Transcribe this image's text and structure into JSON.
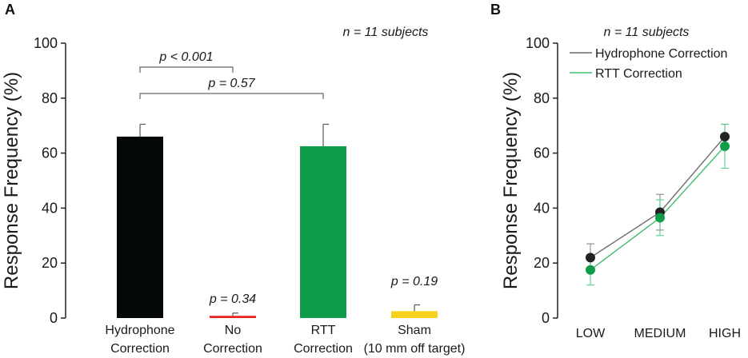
{
  "chart_data": [
    {
      "panel": "A",
      "type": "bar",
      "annotation": "n = 11 subjects",
      "ylabel": "Response Frequency (%)",
      "ylim": [
        0,
        100
      ],
      "yticks": [
        "0",
        "20",
        "40",
        "60",
        "80",
        "100"
      ],
      "categories": [
        {
          "line1": "Hydrophone",
          "line2": "Correction"
        },
        {
          "line1": "No",
          "line2": "Correction"
        },
        {
          "line1": "RTT",
          "line2": "Correction"
        },
        {
          "line1": "Sham",
          "line2": "(10 mm off target)"
        }
      ],
      "values": [
        66,
        0.8,
        62.5,
        2.5
      ],
      "errors": [
        4.5,
        1.0,
        8.0,
        2.3
      ],
      "colors": [
        "#050808",
        "#e8231d",
        "#0f9d4a",
        "#f5d21c"
      ],
      "bar_p_labels": [
        "",
        "p = 0.34",
        "",
        "p = 0.19"
      ],
      "brackets": [
        {
          "label": "p < 0.001",
          "from": 0,
          "to": 1
        },
        {
          "label": "p = 0.57",
          "from": 0,
          "to": 2
        }
      ]
    },
    {
      "panel": "B",
      "type": "line",
      "annotation": "n = 11 subjects",
      "ylabel": "Response Frequency (%)",
      "ylim": [
        0,
        100
      ],
      "yticks": [
        "0",
        "20",
        "40",
        "60",
        "80",
        "100"
      ],
      "categories": [
        "LOW",
        "MEDIUM",
        "HIGH"
      ],
      "series": [
        {
          "name": "Hydrophone Correction",
          "values": [
            22,
            38.5,
            66
          ],
          "errors": [
            5,
            6.5,
            4.5
          ],
          "color": "#222222",
          "line_color": "#6b6b6b"
        },
        {
          "name": "RTT Correction",
          "values": [
            17.5,
            36.5,
            62.5
          ],
          "errors": [
            5.5,
            6.5,
            8
          ],
          "color": "#0f9d4a",
          "line_color": "#3fbf70"
        }
      ]
    }
  ]
}
